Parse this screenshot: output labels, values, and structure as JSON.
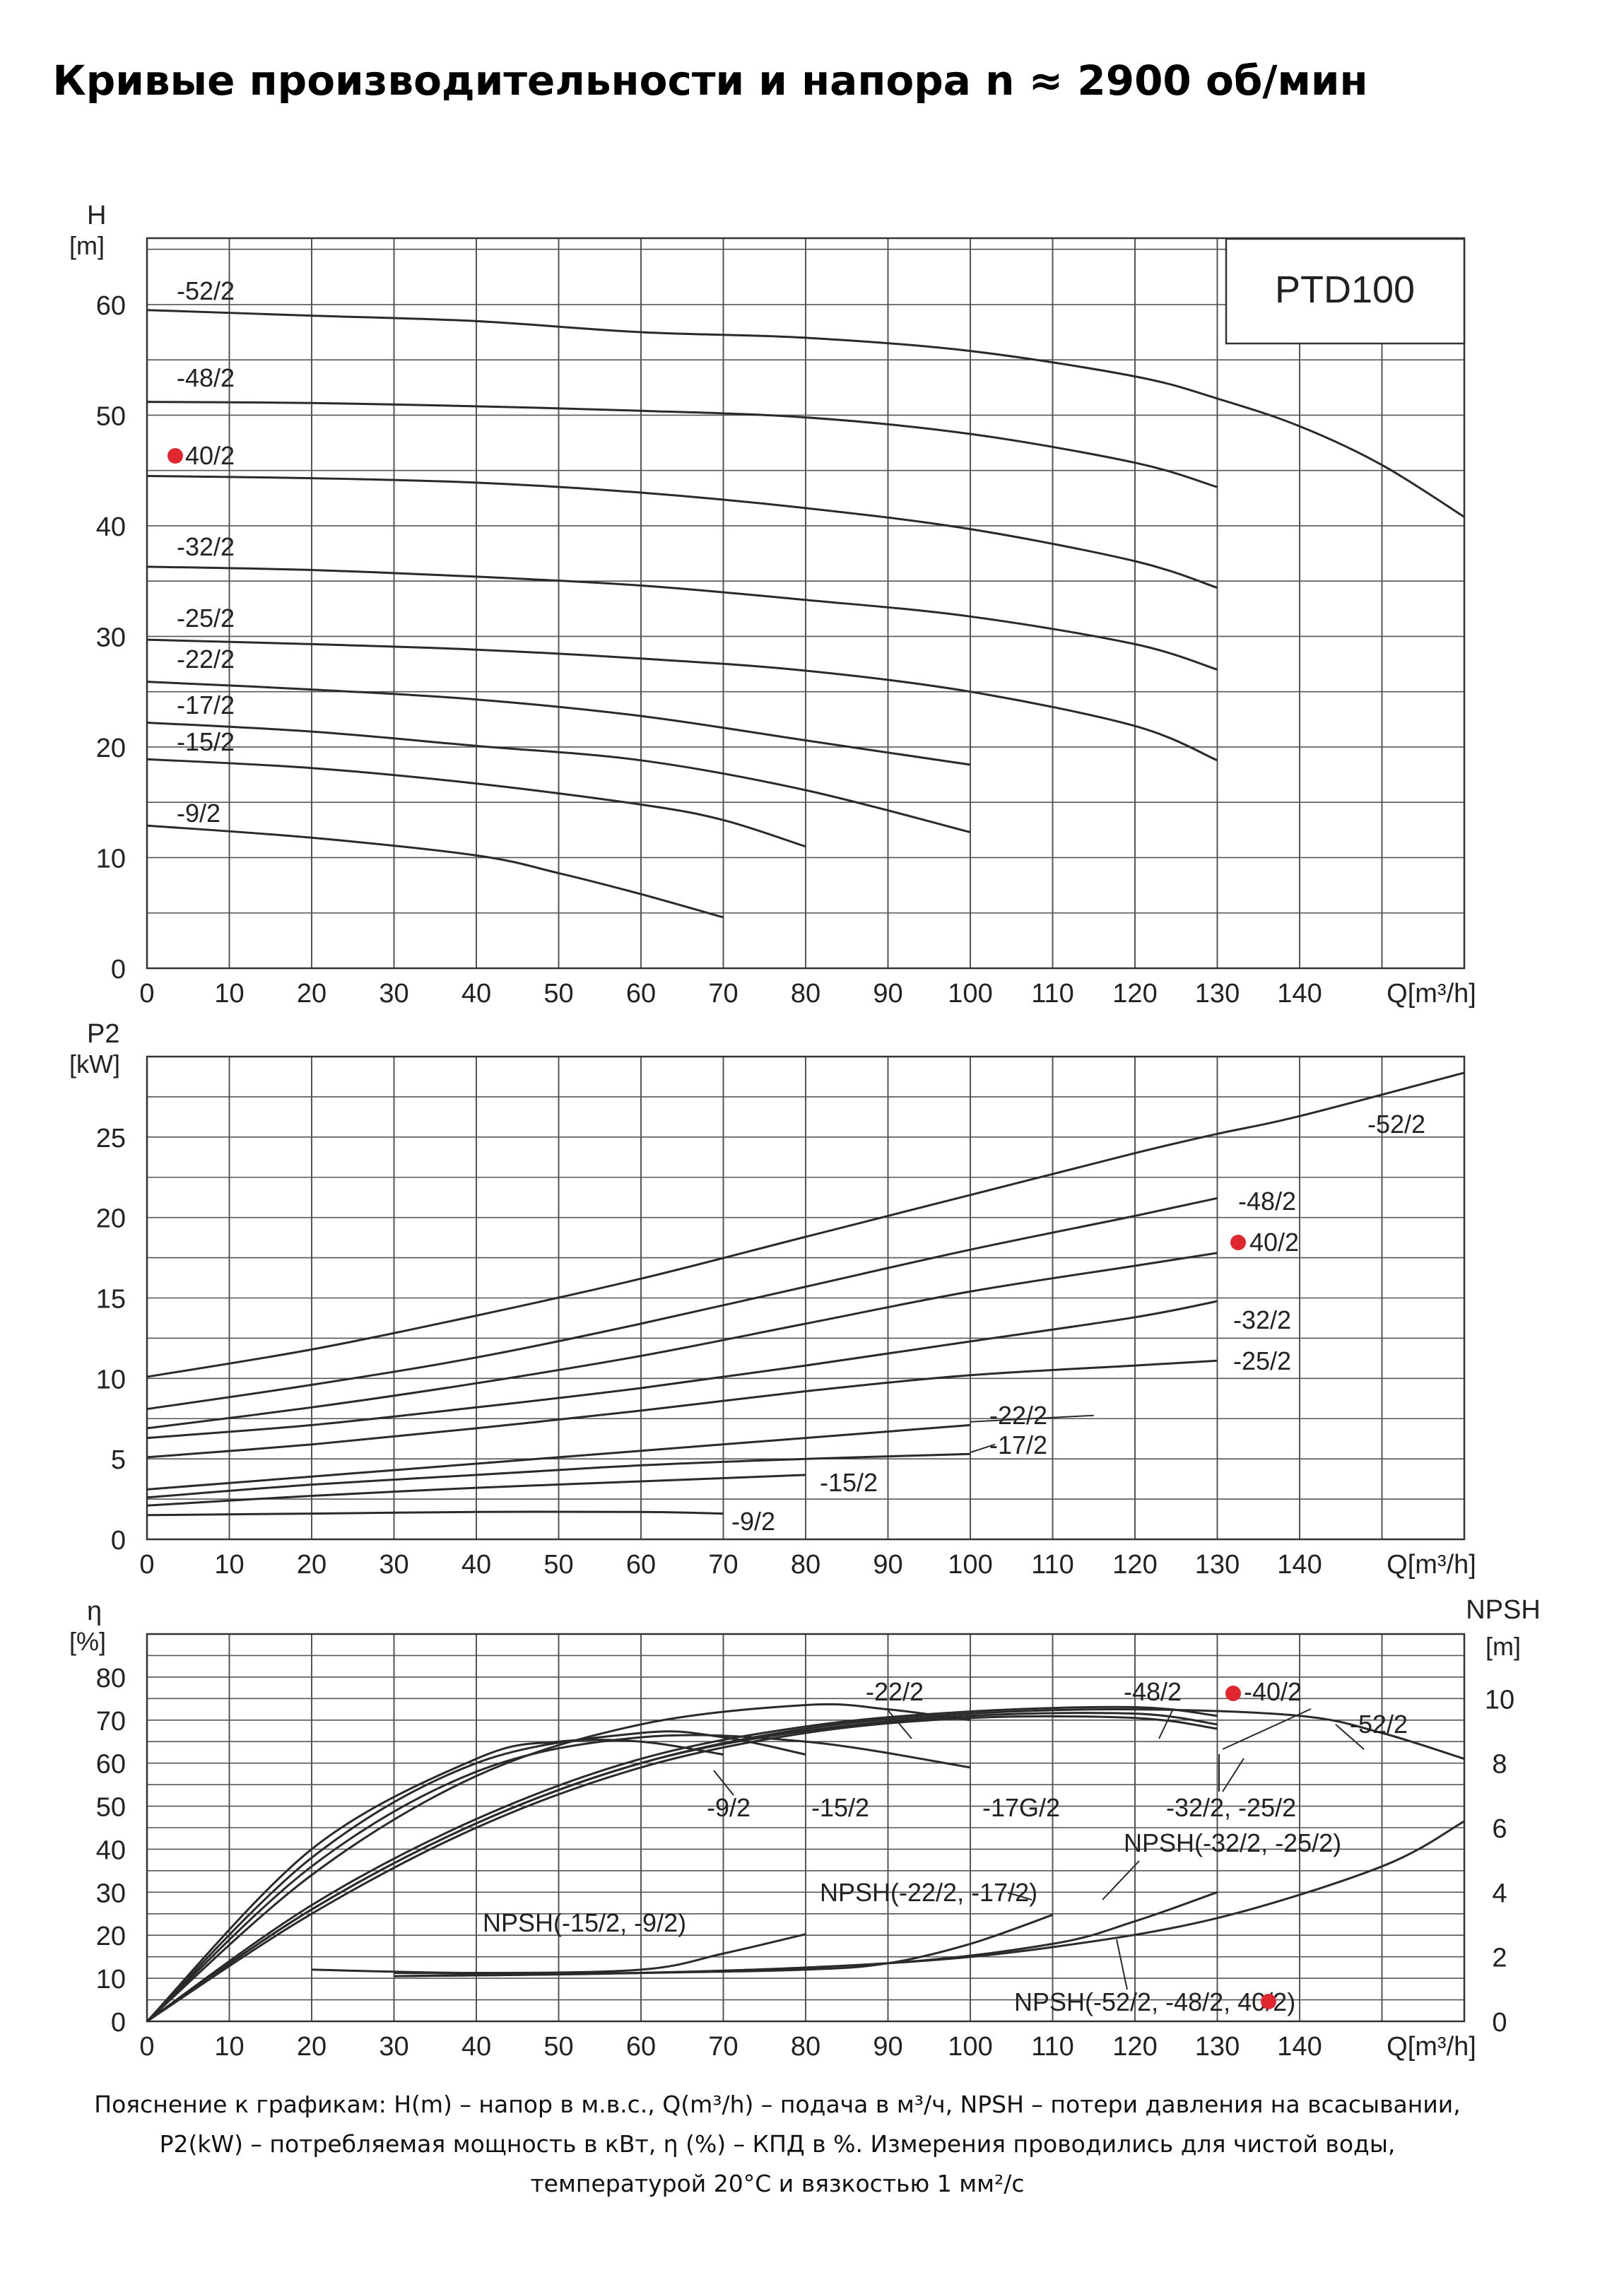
{
  "title": "Кривые производительности и напора n ≈ 2900 об/мин",
  "note": {
    "line1": "Пояснение к графикам: H(m) – напор в м.в.с., Q(m³/h) – подача в м³/ч, NPSH – потери давления на всасывании,",
    "line2": "P2(kW) – потребляемая мощность в кВт, η (%) – КПД в %. Измерения проводились для чистой воды,",
    "line3": "температурой 20°C и вязкостью 1 мм²/с"
  },
  "colors": {
    "curve": "#2a2a2a",
    "grid": "#555555",
    "highlight": "#e0262e"
  },
  "chart_data": [
    {
      "type": "line",
      "title": "",
      "model_label": "PTD100",
      "ylabel_top": "H",
      "ylabel_unit": "[m]",
      "xlabel": "Q[m³/h]",
      "xlim": [
        0,
        160
      ],
      "ylim": [
        0,
        66
      ],
      "xticks": [
        0,
        10,
        20,
        30,
        40,
        50,
        60,
        70,
        80,
        90,
        100,
        110,
        120,
        130,
        140
      ],
      "yticks": [
        0,
        10,
        20,
        30,
        40,
        50,
        60
      ],
      "grid": true,
      "series": [
        {
          "name": "-52/2",
          "x": [
            0,
            20,
            40,
            60,
            80,
            100,
            120,
            130,
            140,
            150,
            160
          ],
          "y": [
            59.5,
            59,
            58.5,
            57.5,
            57,
            55.8,
            53.5,
            51.5,
            49,
            45.5,
            40.8
          ]
        },
        {
          "name": "-48/2",
          "x": [
            0,
            20,
            40,
            60,
            80,
            100,
            120,
            130
          ],
          "y": [
            51.2,
            51.1,
            50.8,
            50.4,
            49.8,
            48.3,
            45.7,
            43.5
          ]
        },
        {
          "name": "-40/2",
          "x": [
            0,
            20,
            40,
            60,
            80,
            100,
            120,
            130
          ],
          "y": [
            44.5,
            44.3,
            43.9,
            43.0,
            41.6,
            39.7,
            36.8,
            34.4
          ]
        },
        {
          "name": "-32/2",
          "x": [
            0,
            20,
            40,
            60,
            80,
            100,
            120,
            130
          ],
          "y": [
            36.3,
            36.0,
            35.4,
            34.6,
            33.3,
            31.8,
            29.3,
            27.0
          ]
        },
        {
          "name": "-25/2",
          "x": [
            0,
            20,
            40,
            60,
            80,
            100,
            120,
            130
          ],
          "y": [
            29.7,
            29.3,
            28.8,
            28.0,
            26.9,
            25.0,
            21.9,
            18.8
          ]
        },
        {
          "name": "-22/2",
          "x": [
            0,
            20,
            40,
            60,
            80,
            100
          ],
          "y": [
            25.9,
            25.2,
            24.3,
            22.8,
            20.6,
            18.4
          ]
        },
        {
          "name": "-17/2",
          "x": [
            0,
            20,
            40,
            60,
            80,
            100
          ],
          "y": [
            22.2,
            21.4,
            20.1,
            18.8,
            16.1,
            12.3
          ]
        },
        {
          "name": "-15/2",
          "x": [
            0,
            20,
            40,
            60,
            70,
            80
          ],
          "y": [
            18.9,
            18.1,
            16.7,
            14.8,
            13.4,
            11.0
          ]
        },
        {
          "name": "-9/2",
          "x": [
            0,
            20,
            40,
            50,
            60,
            70
          ],
          "y": [
            12.9,
            11.8,
            10.2,
            8.6,
            6.7,
            4.6
          ]
        }
      ],
      "highlight": "-40/2"
    },
    {
      "type": "line",
      "title": "",
      "ylabel_top": "P2",
      "ylabel_unit": "[kW]",
      "xlabel": "Q[m³/h]",
      "xlim": [
        0,
        160
      ],
      "ylim": [
        0,
        30
      ],
      "xticks": [
        0,
        10,
        20,
        30,
        40,
        50,
        60,
        70,
        80,
        90,
        100,
        110,
        120,
        130,
        140
      ],
      "yticks": [
        0,
        5,
        10,
        15,
        20,
        25
      ],
      "grid": true,
      "series": [
        {
          "name": "-52/2",
          "x": [
            0,
            20,
            40,
            60,
            80,
            100,
            120,
            130,
            140,
            160
          ],
          "y": [
            10.1,
            11.8,
            13.9,
            16.2,
            18.8,
            21.4,
            24.0,
            25.2,
            26.3,
            29.0
          ]
        },
        {
          "name": "-48/2",
          "x": [
            0,
            20,
            40,
            60,
            80,
            100,
            120,
            130
          ],
          "y": [
            8.1,
            9.6,
            11.3,
            13.4,
            15.7,
            18.0,
            20.1,
            21.2
          ]
        },
        {
          "name": "-40/2",
          "x": [
            0,
            20,
            40,
            60,
            80,
            100,
            120,
            130
          ],
          "y": [
            6.9,
            8.2,
            9.7,
            11.4,
            13.4,
            15.4,
            17.0,
            17.8
          ]
        },
        {
          "name": "-32/2",
          "x": [
            0,
            20,
            40,
            60,
            80,
            100,
            120,
            130
          ],
          "y": [
            6.3,
            7.1,
            8.2,
            9.4,
            10.8,
            12.3,
            13.8,
            14.8
          ]
        },
        {
          "name": "-25/2",
          "x": [
            0,
            20,
            40,
            60,
            80,
            100,
            120,
            130
          ],
          "y": [
            5.1,
            5.9,
            6.9,
            8.0,
            9.2,
            10.2,
            10.8,
            11.1
          ]
        },
        {
          "name": "-22/2",
          "x": [
            0,
            20,
            40,
            60,
            80,
            100
          ],
          "y": [
            3.1,
            3.9,
            4.7,
            5.5,
            6.3,
            7.1
          ]
        },
        {
          "name": "-17/2",
          "x": [
            0,
            20,
            40,
            60,
            80,
            100
          ],
          "y": [
            2.6,
            3.4,
            4.0,
            4.6,
            5.0,
            5.3
          ]
        },
        {
          "name": "-15/2",
          "x": [
            0,
            20,
            40,
            60,
            80
          ],
          "y": [
            2.1,
            2.7,
            3.2,
            3.6,
            4.0
          ]
        },
        {
          "name": "-9/2",
          "x": [
            0,
            20,
            40,
            60,
            70
          ],
          "y": [
            1.5,
            1.6,
            1.7,
            1.7,
            1.6
          ]
        }
      ],
      "highlight": "-40/2"
    },
    {
      "type": "line",
      "title": "",
      "ylabel_top": "η",
      "ylabel_unit": "[%]",
      "ylabel_right_top": "NPSH",
      "ylabel_right_unit": "[m]",
      "xlabel": "Q[m³/h]",
      "xlim": [
        0,
        160
      ],
      "ylim": [
        0,
        90
      ],
      "y2lim": [
        0,
        12
      ],
      "xticks": [
        0,
        10,
        20,
        30,
        40,
        50,
        60,
        70,
        80,
        90,
        100,
        110,
        120,
        130,
        140
      ],
      "yticks": [
        0,
        10,
        20,
        30,
        40,
        50,
        60,
        70,
        80
      ],
      "y2ticks": [
        0,
        2,
        4,
        6,
        8,
        10
      ],
      "grid": true,
      "efficiency_series": [
        {
          "name": "-52/2",
          "x": [
            0,
            20,
            40,
            60,
            80,
            100,
            120,
            140,
            150,
            160
          ],
          "y": [
            0,
            26,
            46,
            60,
            68,
            71.5,
            72.5,
            71,
            67,
            61
          ]
        },
        {
          "name": "-48/2",
          "x": [
            0,
            20,
            40,
            60,
            80,
            100,
            120,
            130
          ],
          "y": [
            0,
            27,
            47,
            61,
            68.5,
            72,
            73,
            71
          ]
        },
        {
          "name": "-40/2",
          "x": [
            0,
            20,
            40,
            60,
            80,
            100,
            120,
            130
          ],
          "y": [
            0,
            26,
            46,
            60,
            67.5,
            71,
            71.5,
            69
          ]
        },
        {
          "name": "-32/2, -25/2",
          "x": [
            0,
            20,
            40,
            60,
            80,
            100,
            120,
            130
          ],
          "y": [
            0,
            25,
            45,
            59,
            67,
            70.5,
            70.5,
            68
          ]
        },
        {
          "name": "-22/2",
          "x": [
            0,
            20,
            40,
            60,
            80,
            90,
            100
          ],
          "y": [
            0,
            34,
            57,
            69,
            73.5,
            72.5,
            70
          ]
        },
        {
          "name": "-17G/2",
          "x": [
            0,
            20,
            40,
            60,
            80,
            100
          ],
          "y": [
            0,
            36,
            58,
            66,
            65,
            59
          ]
        },
        {
          "name": "-15/2",
          "x": [
            0,
            20,
            40,
            60,
            70,
            80
          ],
          "y": [
            0,
            38,
            60,
            67,
            66,
            62
          ]
        },
        {
          "name": "-9/2",
          "x": [
            0,
            20,
            40,
            50,
            60,
            70
          ],
          "y": [
            0,
            40,
            61,
            65,
            65,
            62
          ]
        }
      ],
      "npsh_series": [
        {
          "name": "NPSH(-15/2, -9/2)",
          "x": [
            20,
            40,
            60,
            70,
            80
          ],
          "y": [
            1.6,
            1.5,
            1.6,
            2.1,
            2.7
          ]
        },
        {
          "name": "NPSH(-22/2, -17/2)",
          "x": [
            30,
            60,
            80,
            90,
            100,
            110
          ],
          "y": [
            1.4,
            1.5,
            1.6,
            1.8,
            2.4,
            3.3
          ]
        },
        {
          "name": "NPSH(-32/2, -25/2)",
          "x": [
            30,
            60,
            90,
            110,
            120,
            130
          ],
          "y": [
            1.4,
            1.5,
            1.8,
            2.4,
            3.1,
            4.0
          ]
        },
        {
          "name": "NPSH(-52/2, -48/2, -40/2)",
          "x": [
            30,
            60,
            90,
            110,
            130,
            150,
            160
          ],
          "y": [
            1.5,
            1.5,
            1.8,
            2.3,
            3.2,
            4.8,
            6.2
          ]
        }
      ],
      "curve_labels": [
        "-22/2",
        "-48/2",
        "-40/2",
        "-52/2",
        "-9/2",
        "-15/2",
        "-17G/2",
        "-32/2, -25/2",
        "NPSH(-32/2, -25/2)",
        "NPSH(-22/2, -17/2)",
        "NPSH(-15/2, -9/2)",
        "NPSH(-52/2, -48/2, -40/2)"
      ],
      "highlight": "-40/2"
    }
  ]
}
